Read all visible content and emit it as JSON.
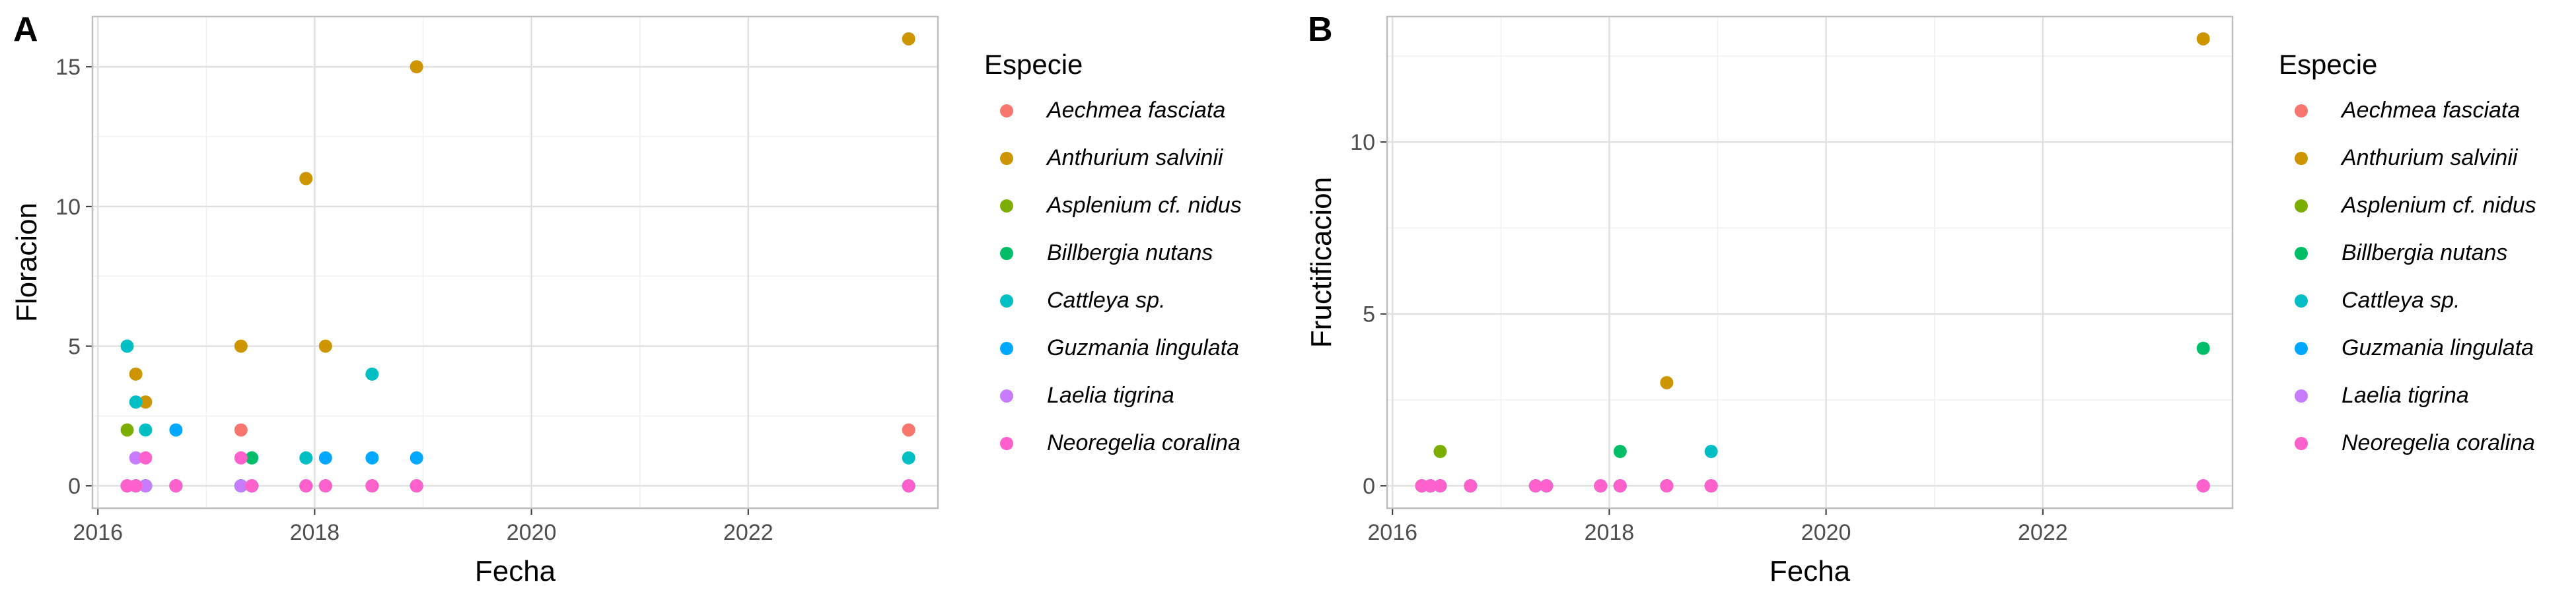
{
  "species_colors": {
    "Aechmea fasciata": "#F8766D",
    "Anthurium salvinii": "#CD9600",
    "Asplenium cf. nidus": "#7CAE00",
    "Billbergia nutans": "#00BE67",
    "Cattleya sp.": "#00BFC4",
    "Guzmania lingulata": "#00A9FF",
    "Laelia tigrina": "#C77CFF",
    "Neoregelia coralina": "#FF61CC"
  },
  "chart_data": [
    {
      "type": "scatter",
      "panel_label": "A",
      "xlabel": "Fecha",
      "ylabel": "Floracion",
      "xlim": [
        2015.95,
        2023.75
      ],
      "ylim": [
        -0.8,
        16.8
      ],
      "x_ticks": [
        2016,
        2018,
        2020,
        2022
      ],
      "x_tick_labels": [
        "2016",
        "2018",
        "2020",
        "2022"
      ],
      "y_ticks": [
        0,
        5,
        10,
        15
      ],
      "y_tick_labels": [
        "0",
        "5",
        "10",
        "15"
      ],
      "legend_title": "Especie",
      "legend_position": "right",
      "series": [
        {
          "name": "Aechmea fasciata",
          "points": [
            [
              2016.27,
              0
            ],
            [
              2016.35,
              0
            ],
            [
              2016.44,
              0
            ],
            [
              2016.72,
              0
            ],
            [
              2017.32,
              2
            ],
            [
              2017.42,
              0
            ],
            [
              2017.92,
              0
            ],
            [
              2018.1,
              0
            ],
            [
              2018.53,
              0
            ],
            [
              2018.94,
              0
            ],
            [
              2023.48,
              2
            ]
          ]
        },
        {
          "name": "Anthurium salvinii",
          "points": [
            [
              2016.27,
              0
            ],
            [
              2016.35,
              4
            ],
            [
              2016.44,
              3
            ],
            [
              2016.72,
              0
            ],
            [
              2017.32,
              5
            ],
            [
              2017.42,
              0
            ],
            [
              2017.92,
              11
            ],
            [
              2018.1,
              5
            ],
            [
              2018.53,
              0
            ],
            [
              2018.94,
              15
            ],
            [
              2023.48,
              16
            ]
          ]
        },
        {
          "name": "Asplenium cf. nidus",
          "points": [
            [
              2016.27,
              2
            ],
            [
              2016.35,
              0
            ],
            [
              2016.44,
              0
            ],
            [
              2016.72,
              0
            ],
            [
              2017.32,
              0
            ],
            [
              2017.42,
              0
            ],
            [
              2017.92,
              0
            ],
            [
              2018.1,
              0
            ],
            [
              2018.53,
              0
            ],
            [
              2018.94,
              0
            ],
            [
              2023.48,
              0
            ]
          ]
        },
        {
          "name": "Billbergia nutans",
          "points": [
            [
              2016.27,
              0
            ],
            [
              2016.35,
              0
            ],
            [
              2016.44,
              0
            ],
            [
              2016.72,
              0
            ],
            [
              2017.32,
              0
            ],
            [
              2017.42,
              1
            ],
            [
              2017.92,
              0
            ],
            [
              2018.1,
              0
            ],
            [
              2018.53,
              0
            ],
            [
              2018.94,
              0
            ],
            [
              2023.48,
              0
            ]
          ]
        },
        {
          "name": "Cattleya sp.",
          "points": [
            [
              2016.27,
              5
            ],
            [
              2016.35,
              3
            ],
            [
              2016.44,
              2
            ],
            [
              2016.72,
              0
            ],
            [
              2017.32,
              0
            ],
            [
              2017.42,
              0
            ],
            [
              2017.92,
              1
            ],
            [
              2018.1,
              0
            ],
            [
              2018.53,
              4
            ],
            [
              2018.94,
              0
            ],
            [
              2023.48,
              1
            ]
          ]
        },
        {
          "name": "Guzmania lingulata",
          "points": [
            [
              2016.27,
              0
            ],
            [
              2016.35,
              0
            ],
            [
              2016.44,
              0
            ],
            [
              2016.72,
              2
            ],
            [
              2017.32,
              0
            ],
            [
              2017.42,
              0
            ],
            [
              2017.92,
              0
            ],
            [
              2018.1,
              1
            ],
            [
              2018.53,
              1
            ],
            [
              2018.94,
              1
            ],
            [
              2023.48,
              0
            ]
          ]
        },
        {
          "name": "Laelia tigrina",
          "points": [
            [
              2016.27,
              0
            ],
            [
              2016.35,
              1
            ],
            [
              2016.44,
              0
            ],
            [
              2016.72,
              0
            ],
            [
              2017.32,
              0
            ],
            [
              2017.42,
              0
            ],
            [
              2017.92,
              0
            ],
            [
              2018.1,
              0
            ],
            [
              2018.53,
              0
            ],
            [
              2018.94,
              0
            ],
            [
              2023.48,
              0
            ]
          ]
        },
        {
          "name": "Neoregelia coralina",
          "points": [
            [
              2016.27,
              0
            ],
            [
              2016.35,
              0
            ],
            [
              2016.44,
              1
            ],
            [
              2016.72,
              0
            ],
            [
              2017.32,
              1
            ],
            [
              2017.42,
              0
            ],
            [
              2017.92,
              0
            ],
            [
              2018.1,
              0
            ],
            [
              2018.53,
              0
            ],
            [
              2018.94,
              0
            ],
            [
              2023.48,
              0
            ]
          ]
        }
      ]
    },
    {
      "type": "scatter",
      "panel_label": "B",
      "xlabel": "Fecha",
      "ylabel": "Fructificacion",
      "xlim": [
        2015.95,
        2023.75
      ],
      "ylim": [
        -0.65,
        13.65
      ],
      "x_ticks": [
        2016,
        2018,
        2020,
        2022
      ],
      "x_tick_labels": [
        "2016",
        "2018",
        "2020",
        "2022"
      ],
      "y_ticks": [
        0,
        5,
        10
      ],
      "y_tick_labels": [
        "0",
        "5",
        "10"
      ],
      "legend_title": "Especie",
      "legend_position": "right",
      "series": [
        {
          "name": "Aechmea fasciata",
          "points": [
            [
              2016.27,
              0
            ],
            [
              2016.35,
              0
            ],
            [
              2016.44,
              0
            ],
            [
              2016.72,
              0
            ],
            [
              2017.32,
              0
            ],
            [
              2017.42,
              0
            ],
            [
              2017.92,
              0
            ],
            [
              2018.1,
              0
            ],
            [
              2018.53,
              0
            ],
            [
              2018.94,
              0
            ],
            [
              2023.48,
              0
            ]
          ]
        },
        {
          "name": "Anthurium salvinii",
          "points": [
            [
              2016.27,
              0
            ],
            [
              2016.35,
              0
            ],
            [
              2016.44,
              0
            ],
            [
              2016.72,
              0
            ],
            [
              2017.32,
              0
            ],
            [
              2017.42,
              0
            ],
            [
              2017.92,
              0
            ],
            [
              2018.1,
              0
            ],
            [
              2018.53,
              3
            ],
            [
              2018.94,
              0
            ],
            [
              2023.48,
              13
            ]
          ]
        },
        {
          "name": "Asplenium cf. nidus",
          "points": [
            [
              2016.27,
              0
            ],
            [
              2016.35,
              0
            ],
            [
              2016.44,
              1
            ],
            [
              2016.72,
              0
            ],
            [
              2017.32,
              0
            ],
            [
              2017.42,
              0
            ],
            [
              2017.92,
              0
            ],
            [
              2018.1,
              0
            ],
            [
              2018.53,
              0
            ],
            [
              2018.94,
              0
            ],
            [
              2023.48,
              0
            ]
          ]
        },
        {
          "name": "Billbergia nutans",
          "points": [
            [
              2016.27,
              0
            ],
            [
              2016.35,
              0
            ],
            [
              2016.44,
              0
            ],
            [
              2016.72,
              0
            ],
            [
              2017.32,
              0
            ],
            [
              2017.42,
              0
            ],
            [
              2017.92,
              0
            ],
            [
              2018.1,
              1
            ],
            [
              2018.53,
              0
            ],
            [
              2018.94,
              0
            ],
            [
              2023.48,
              4
            ]
          ]
        },
        {
          "name": "Cattleya sp.",
          "points": [
            [
              2016.27,
              0
            ],
            [
              2016.35,
              0
            ],
            [
              2016.44,
              0
            ],
            [
              2016.72,
              0
            ],
            [
              2017.32,
              0
            ],
            [
              2017.42,
              0
            ],
            [
              2017.92,
              0
            ],
            [
              2018.1,
              0
            ],
            [
              2018.53,
              0
            ],
            [
              2018.94,
              1
            ],
            [
              2023.48,
              0
            ]
          ]
        },
        {
          "name": "Guzmania lingulata",
          "points": [
            [
              2016.27,
              0
            ],
            [
              2016.35,
              0
            ],
            [
              2016.44,
              0
            ],
            [
              2016.72,
              0
            ],
            [
              2017.32,
              0
            ],
            [
              2017.42,
              0
            ],
            [
              2017.92,
              0
            ],
            [
              2018.1,
              0
            ],
            [
              2018.53,
              0
            ],
            [
              2018.94,
              0
            ],
            [
              2023.48,
              0
            ]
          ]
        },
        {
          "name": "Laelia tigrina",
          "points": [
            [
              2016.27,
              0
            ],
            [
              2016.35,
              0
            ],
            [
              2016.44,
              0
            ],
            [
              2016.72,
              0
            ],
            [
              2017.32,
              0
            ],
            [
              2017.42,
              0
            ],
            [
              2017.92,
              0
            ],
            [
              2018.1,
              0
            ],
            [
              2018.53,
              0
            ],
            [
              2018.94,
              0
            ],
            [
              2023.48,
              0
            ]
          ]
        },
        {
          "name": "Neoregelia coralina",
          "points": [
            [
              2016.27,
              0
            ],
            [
              2016.35,
              0
            ],
            [
              2016.44,
              0
            ],
            [
              2016.72,
              0
            ],
            [
              2017.32,
              0
            ],
            [
              2017.42,
              0
            ],
            [
              2017.92,
              0
            ],
            [
              2018.1,
              0
            ],
            [
              2018.53,
              0
            ],
            [
              2018.94,
              0
            ],
            [
              2023.48,
              0
            ]
          ]
        }
      ]
    }
  ]
}
